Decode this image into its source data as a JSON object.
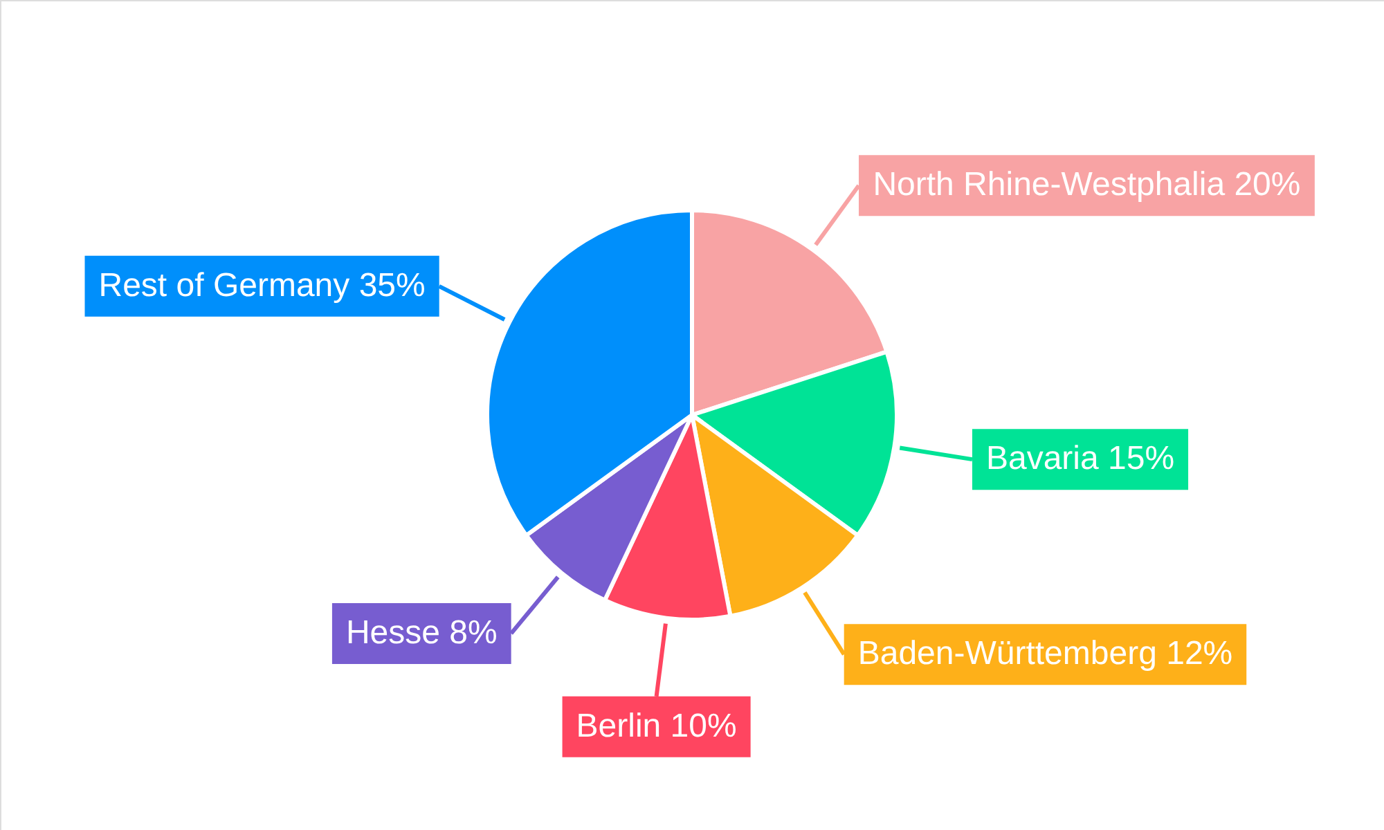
{
  "chart_data": {
    "type": "pie",
    "categories": [
      "North Rhine-Westphalia",
      "Bavaria",
      "Baden-Württemberg",
      "Berlin",
      "Hesse",
      "Rest of Germany"
    ],
    "values": [
      20,
      15,
      12,
      10,
      8,
      35
    ],
    "value_labels": [
      "20%",
      "15%",
      "12%",
      "10%",
      "8%",
      "35%"
    ],
    "colors": [
      "#f8a3a4",
      "#00e396",
      "#feb019",
      "#ff4560",
      "#775dd0",
      "#008ffb"
    ]
  }
}
